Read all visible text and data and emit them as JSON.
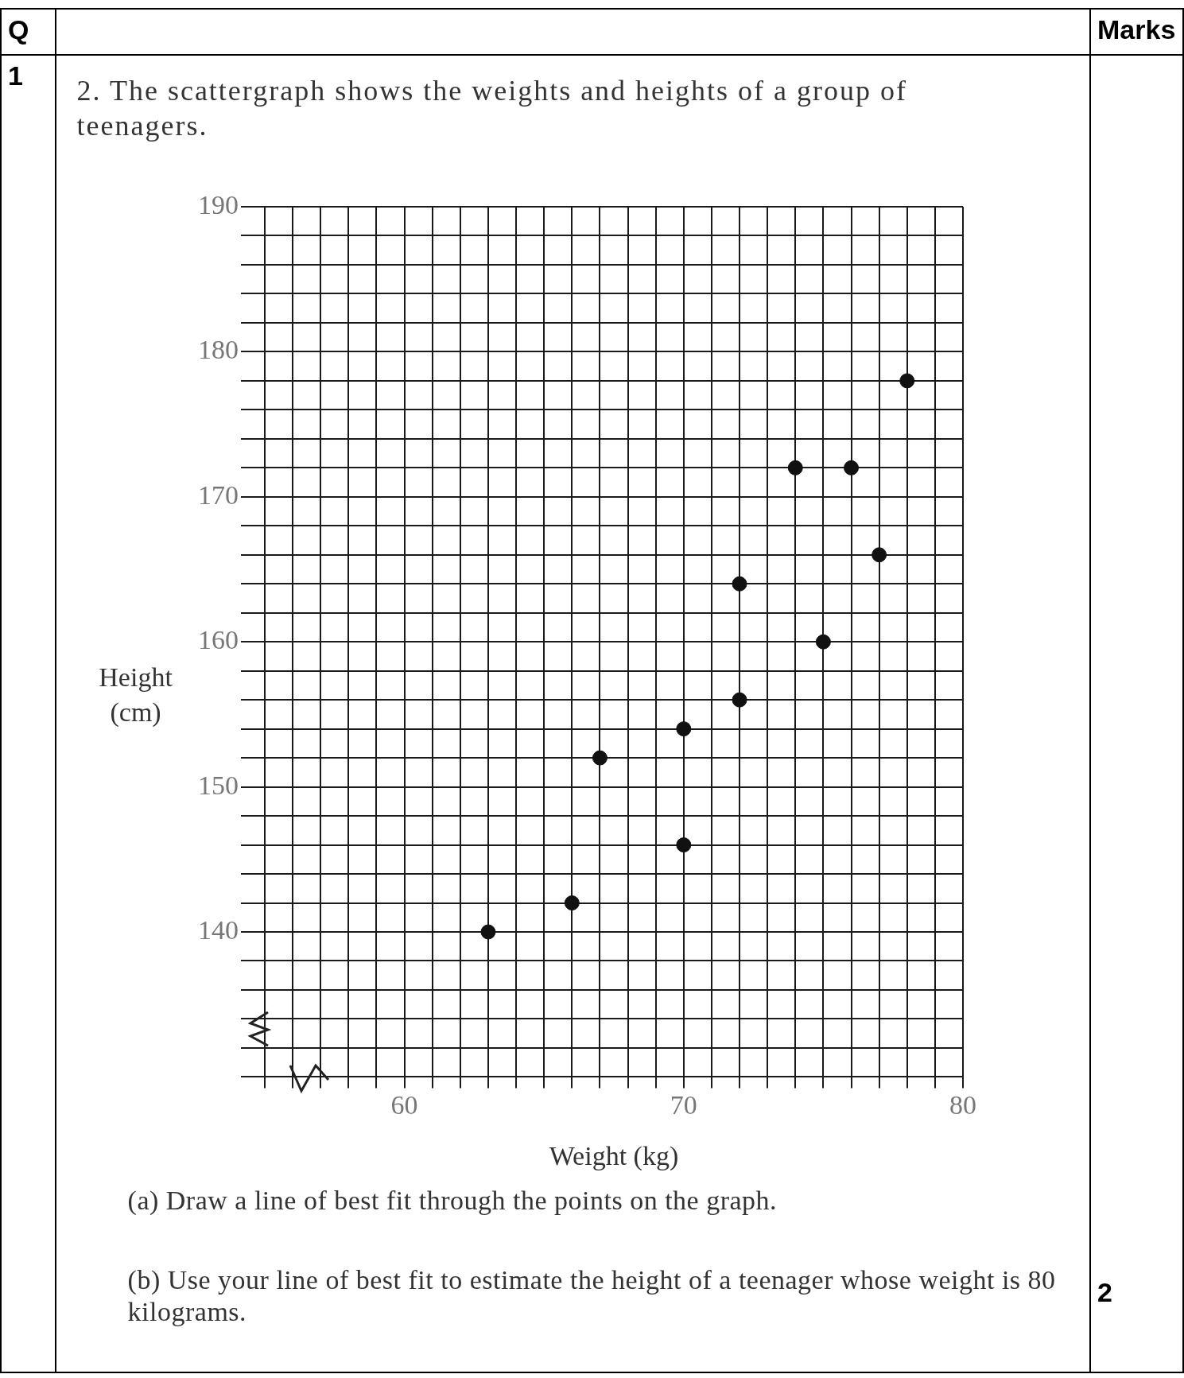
{
  "chart_data": {
    "type": "scatter",
    "title": "2. The scattergraph shows the weights and heights of a group of teenagers.",
    "xlabel": "Weight (kg)",
    "ylabel": "Height (cm)",
    "x": [
      63,
      66,
      67,
      70,
      70,
      72,
      72,
      74,
      75,
      76,
      77,
      78
    ],
    "values": [
      140,
      142,
      152,
      146,
      154,
      156,
      164,
      172,
      160,
      172,
      166,
      178
    ],
    "color": "#111111",
    "marker": "circle",
    "grid": true,
    "legend": false,
    "xlim": [
      55,
      80
    ],
    "xticks": [
      {
        "value": 55,
        "label": null
      },
      {
        "value": 56,
        "label": null
      },
      {
        "value": 57,
        "label": null
      },
      {
        "value": 58,
        "label": null
      },
      {
        "value": 59,
        "label": null
      },
      60,
      {
        "value": 61,
        "label": null
      },
      {
        "value": 62,
        "label": null
      },
      {
        "value": 63,
        "label": null
      },
      {
        "value": 64,
        "label": null
      },
      {
        "value": 65,
        "label": null
      },
      {
        "value": 66,
        "label": null
      },
      {
        "value": 67,
        "label": null
      },
      {
        "value": 68,
        "label": null
      },
      {
        "value": 69,
        "label": null
      },
      70,
      {
        "value": 71,
        "label": null
      },
      {
        "value": 72,
        "label": null
      },
      {
        "value": 73,
        "label": null
      },
      {
        "value": 74,
        "label": null
      },
      {
        "value": 75,
        "label": null
      },
      {
        "value": 76,
        "label": null
      },
      {
        "value": 77,
        "label": null
      },
      {
        "value": 78,
        "label": null
      },
      {
        "value": 79,
        "label": null
      },
      80
    ],
    "ylim": [
      130,
      190
    ],
    "yticks": [
      {
        "value": 130,
        "label": null
      },
      {
        "value": 132,
        "label": null
      },
      {
        "value": 134,
        "label": null
      },
      {
        "value": 136,
        "label": null
      },
      {
        "value": 138,
        "label": null
      },
      140,
      {
        "value": 142,
        "label": null
      },
      {
        "value": 144,
        "label": null
      },
      {
        "value": 146,
        "label": null
      },
      {
        "value": 148,
        "label": null
      },
      150,
      {
        "value": 152,
        "label": null
      },
      {
        "value": 154,
        "label": null
      },
      {
        "value": 156,
        "label": null
      },
      {
        "value": 158,
        "label": null
      },
      160,
      {
        "value": 162,
        "label": null
      },
      {
        "value": 164,
        "label": null
      },
      {
        "value": 166,
        "label": null
      },
      {
        "value": 168,
        "label": null
      },
      170,
      {
        "value": 172,
        "label": null
      },
      {
        "value": 174,
        "label": null
      },
      {
        "value": 176,
        "label": null
      },
      {
        "value": 178,
        "label": null
      },
      180,
      {
        "value": 182,
        "label": null
      },
      {
        "value": 184,
        "label": null
      },
      {
        "value": 186,
        "label": null
      },
      {
        "value": 188,
        "label": null
      },
      190
    ],
    "annotations": [
      "Q",
      "Marks",
      "1",
      "2",
      "(a)  Draw a line of best fit through the points on the graph.",
      "(b)  Use your line of best fit to estimate the height of a teenager whose weight is 80 kilograms."
    ]
  }
}
